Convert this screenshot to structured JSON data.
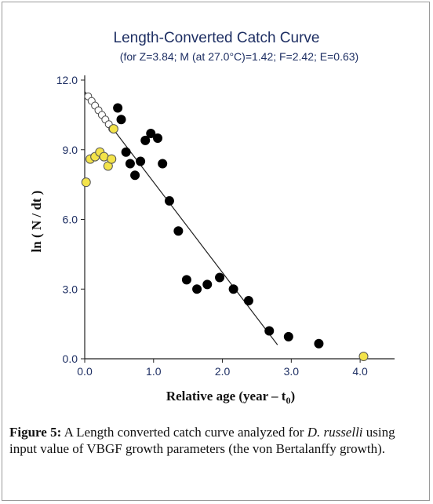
{
  "chart_data": {
    "type": "scatter",
    "title": "Length-Converted Catch Curve",
    "subtitle": "(for Z=3.84; M (at 27.0°C)=1.42; F=2.42; E=0.63)",
    "xlabel_main": "Relative age (year – t",
    "xlabel_sub": "0",
    "xlabel_close": ")",
    "ylabel": "ln ( N / dt )",
    "xlim": [
      0.0,
      4.5
    ],
    "ylim": [
      0.0,
      12.0
    ],
    "x_ticks": [
      "0.0",
      "1.0",
      "2.0",
      "3.0",
      "4.0"
    ],
    "y_ticks": [
      "0.0",
      "3.0",
      "6.0",
      "9.0",
      "12.0"
    ],
    "x_tick_values": [
      0,
      1,
      2,
      3,
      4
    ],
    "y_tick_values": [
      0,
      3,
      6,
      9,
      12
    ],
    "series": [
      {
        "marker": "black-dot",
        "points": [
          [
            0.48,
            10.8
          ],
          [
            0.53,
            10.3
          ],
          [
            0.6,
            8.9
          ],
          [
            0.66,
            8.4
          ],
          [
            0.73,
            7.9
          ],
          [
            0.81,
            8.5
          ],
          [
            0.88,
            9.4
          ],
          [
            0.96,
            9.7
          ],
          [
            1.06,
            9.5
          ],
          [
            1.13,
            8.4
          ],
          [
            1.23,
            6.8
          ],
          [
            1.36,
            5.5
          ],
          [
            1.48,
            3.4
          ],
          [
            1.63,
            3.0
          ],
          [
            1.78,
            3.2
          ],
          [
            1.96,
            3.5
          ],
          [
            2.16,
            3.0
          ],
          [
            2.38,
            2.5
          ],
          [
            2.68,
            1.2
          ],
          [
            2.96,
            0.95
          ],
          [
            3.4,
            0.65
          ]
        ]
      },
      {
        "marker": "yellow-dot",
        "points": [
          [
            0.02,
            7.6
          ],
          [
            0.08,
            8.6
          ],
          [
            0.15,
            8.7
          ],
          [
            0.22,
            8.9
          ],
          [
            0.28,
            8.7
          ],
          [
            0.34,
            8.3
          ],
          [
            0.39,
            8.6
          ],
          [
            0.42,
            9.9
          ],
          [
            4.05,
            0.1
          ]
        ]
      },
      {
        "marker": "white-dot",
        "points": [
          [
            0.05,
            11.3
          ],
          [
            0.1,
            11.1
          ],
          [
            0.15,
            10.9
          ],
          [
            0.2,
            10.7
          ],
          [
            0.25,
            10.5
          ],
          [
            0.3,
            10.3
          ],
          [
            0.35,
            10.1
          ],
          [
            0.4,
            9.9
          ]
        ]
      }
    ],
    "regression_line": {
      "x": [
        0.0,
        2.8
      ],
      "y": [
        11.5,
        0.6
      ]
    }
  },
  "caption": {
    "figure_label": "Figure 5:",
    "text_before_species": " A Length converted catch curve analyzed for ",
    "species": "D. russelli",
    "text_after_species": " using input value of VBGF growth parameters (the von Bertalanffy growth)."
  }
}
